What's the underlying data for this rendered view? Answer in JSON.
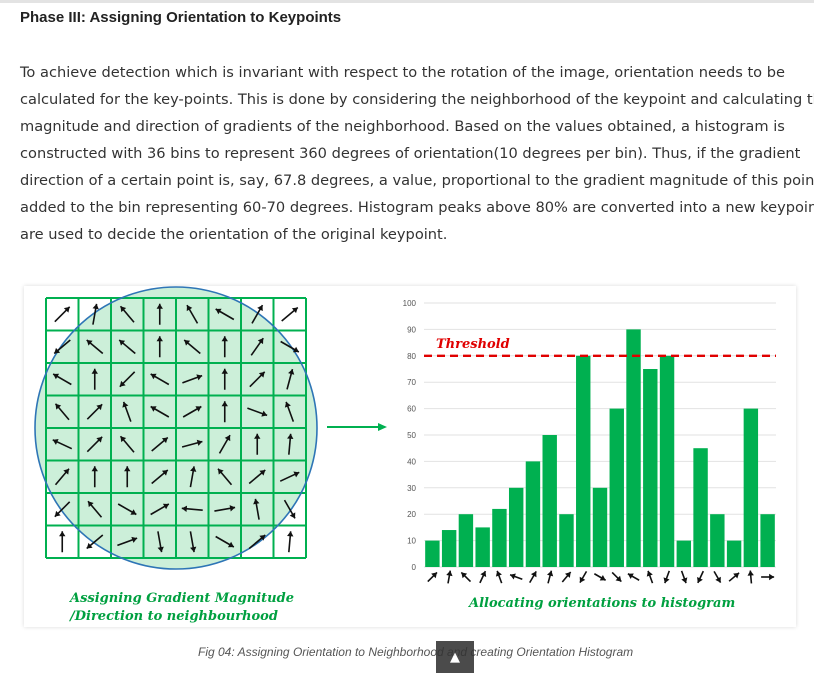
{
  "heading": "Phase III: Assigning Orientation to Keypoints",
  "paragraph_lines": [
    "To achieve detection which is invariant with respect to the rotation of the image, orientation needs to be",
    "calculated for the key-points. This is done by considering the neighborhood of the keypoint and calculating the",
    "magnitude and direction of gradients of the neighborhood. Based on the values obtained, a histogram is",
    "constructed with 36 bins to represent 360 degrees of orientation(10 degrees per bin). Thus, if the gradient",
    "direction of a certain point is, say, 67.8 degrees, a value, proportional to the gradient magnitude of this point, is",
    "added to the bin representing 60-70 degrees. Histogram peaks above 80% are converted into a new keypoint",
    "are used to decide the orientation of the original keypoint."
  ],
  "figure": {
    "left_label_line1": "Assigning Gradient Magnitude",
    "left_label_line2": "/Direction to neighbourhood",
    "right_label": "Allocating orientations to histogram",
    "threshold_label": "Threshold",
    "caption": "Fig 04: Assigning Orientation to Neighborhood and creating Orientation Histogram",
    "colors": {
      "green": "#00b050",
      "light_green": "#ccefd9",
      "circle": "#2e75b6",
      "threshold": "#e00000",
      "label_green": "#00a040"
    },
    "grid_arrow_angles": [
      [
        45,
        80,
        130,
        90,
        120,
        150,
        60,
        40
      ],
      [
        220,
        140,
        140,
        90,
        140,
        90,
        55,
        330
      ],
      [
        150,
        90,
        225,
        150,
        20,
        90,
        45,
        75
      ],
      [
        130,
        45,
        110,
        150,
        30,
        90,
        340,
        110
      ],
      [
        155,
        45,
        130,
        40,
        15,
        60,
        90,
        85
      ],
      [
        50,
        90,
        90,
        40,
        80,
        130,
        40,
        25
      ],
      [
        225,
        130,
        330,
        30,
        175,
        10,
        100,
        300
      ],
      [
        90,
        220,
        20,
        280,
        280,
        330,
        40,
        85
      ]
    ],
    "histogram_angles": [
      45,
      80,
      135,
      65,
      110,
      160,
      60,
      75,
      50,
      240,
      330,
      315,
      150,
      110,
      250,
      290,
      245,
      300,
      40,
      95,
      0
    ]
  },
  "chart_data": {
    "type": "bar",
    "values": [
      10,
      14,
      20,
      15,
      22,
      30,
      40,
      50,
      20,
      80,
      30,
      60,
      90,
      75,
      80,
      10,
      45,
      20,
      10,
      60,
      20
    ],
    "yticks": [
      0,
      10,
      20,
      30,
      40,
      50,
      60,
      70,
      80,
      90,
      100
    ],
    "ylim": [
      0,
      100
    ],
    "threshold": 80,
    "threshold_label": "Threshold",
    "xlabel": "Allocating orientations to histogram",
    "grid": true,
    "color": "#00b050"
  },
  "scroll_top_icon": "arrow-up-icon",
  "scroll_top_glyph": "▲"
}
